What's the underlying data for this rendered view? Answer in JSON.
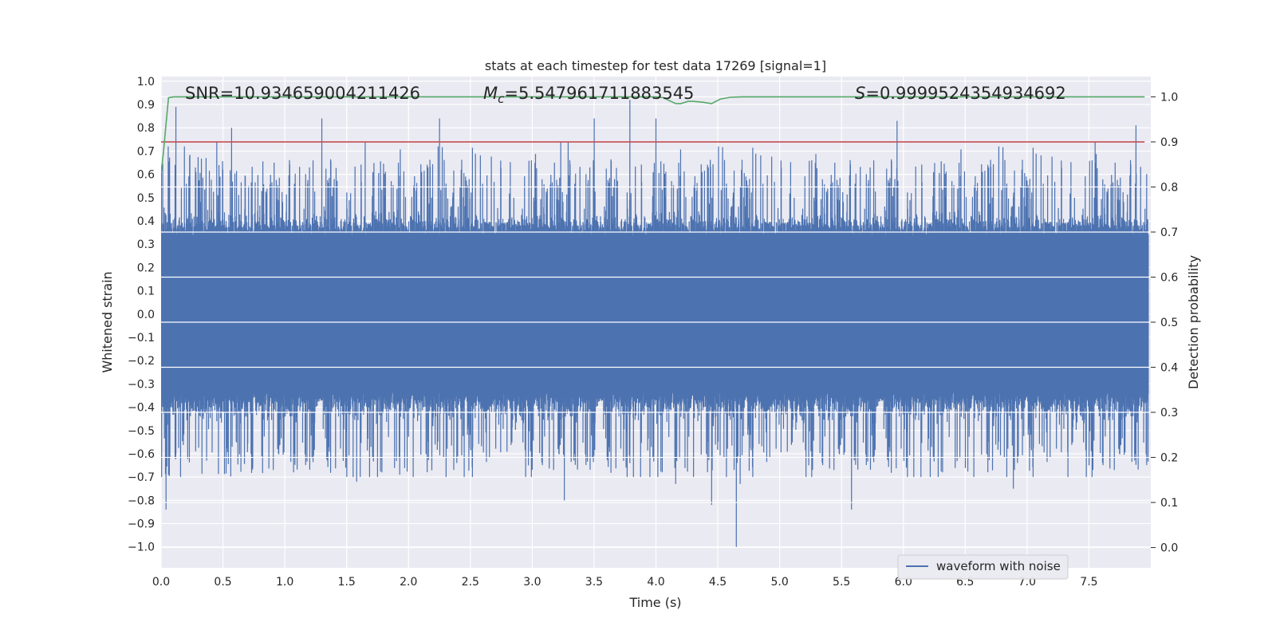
{
  "chart_data": {
    "type": "line",
    "title": "stats at each timestep for test data 17269 [signal=1]",
    "xlabel": "Time (s)",
    "ylabel": "Whitened strain",
    "y2label": "Detection probability",
    "xlim": [
      0.0,
      8.0
    ],
    "ylim": [
      -1.09,
      1.02
    ],
    "y2lim": [
      -0.045,
      1.045
    ],
    "x_ticks": [
      "0.0",
      "0.5",
      "1.0",
      "1.5",
      "2.0",
      "2.5",
      "3.0",
      "3.5",
      "4.0",
      "4.5",
      "5.0",
      "5.5",
      "6.0",
      "6.5",
      "7.0",
      "7.5"
    ],
    "y_ticks": [
      "1.0",
      "0.9",
      "0.8",
      "0.7",
      "0.6",
      "0.5",
      "0.4",
      "0.3",
      "0.2",
      "0.1",
      "0.0",
      "−0.1",
      "−0.2",
      "−0.3",
      "−0.4",
      "−0.5",
      "−0.6",
      "−0.7",
      "−0.8",
      "−0.9",
      "−1.0"
    ],
    "y2_ticks": [
      "1.0",
      "0.9",
      "0.8",
      "0.7",
      "0.6",
      "0.5",
      "0.4",
      "0.3",
      "0.2",
      "0.1",
      "0.0"
    ],
    "grid": true,
    "legend_position": "lower-right",
    "annotations": {
      "snr": "SNR=10.934659004211426",
      "mc_symbol": "M",
      "mc_sub": "c",
      "mc_value": "=5.547961711883545",
      "s_symbol": "S",
      "s_value": "=0.9999524354934692"
    },
    "series": [
      {
        "name": "waveform with noise",
        "axis": "left",
        "color": "#4c72b0",
        "typical_envelope": 0.33,
        "peak_x": [
          0.12,
          0.45,
          0.57,
          1.3,
          1.65,
          2.25,
          3.23,
          3.29,
          3.5,
          3.79,
          4.0,
          5.95,
          7.55,
          7.88
        ],
        "peak_y": [
          0.89,
          0.74,
          0.8,
          0.84,
          0.74,
          0.84,
          0.74,
          0.74,
          0.84,
          0.92,
          0.84,
          0.83,
          0.74,
          0.81
        ],
        "trough_x": [
          0.04,
          0.07,
          1.07,
          1.58,
          1.93,
          2.45,
          3.26,
          3.79,
          4.16,
          4.45,
          4.65,
          4.68,
          5.58,
          6.89,
          7.33
        ],
        "trough_y": [
          -0.84,
          -0.62,
          -0.68,
          -0.72,
          -0.69,
          -0.7,
          -0.8,
          -0.64,
          -0.73,
          -0.82,
          -1.0,
          -0.73,
          -0.84,
          -0.75,
          -0.7
        ]
      },
      {
        "name": "",
        "axis": "right",
        "color": "#55a868",
        "x": [
          0.0,
          0.02,
          0.04,
          0.06,
          0.1,
          0.2,
          4.0,
          4.06,
          4.12,
          4.16,
          4.2,
          4.26,
          4.3,
          4.38,
          4.45,
          4.52,
          4.6,
          4.7,
          7.95
        ],
        "y": [
          0.83,
          0.88,
          0.94,
          0.998,
          1.0,
          1.0,
          1.0,
          0.998,
          0.99,
          0.985,
          0.985,
          0.99,
          0.99,
          0.988,
          0.985,
          0.995,
          0.999,
          1.0,
          1.0
        ]
      },
      {
        "name": "",
        "axis": "right",
        "color": "#c44e52",
        "x": [
          0.0,
          7.95
        ],
        "y": [
          0.9,
          0.9
        ]
      }
    ]
  }
}
